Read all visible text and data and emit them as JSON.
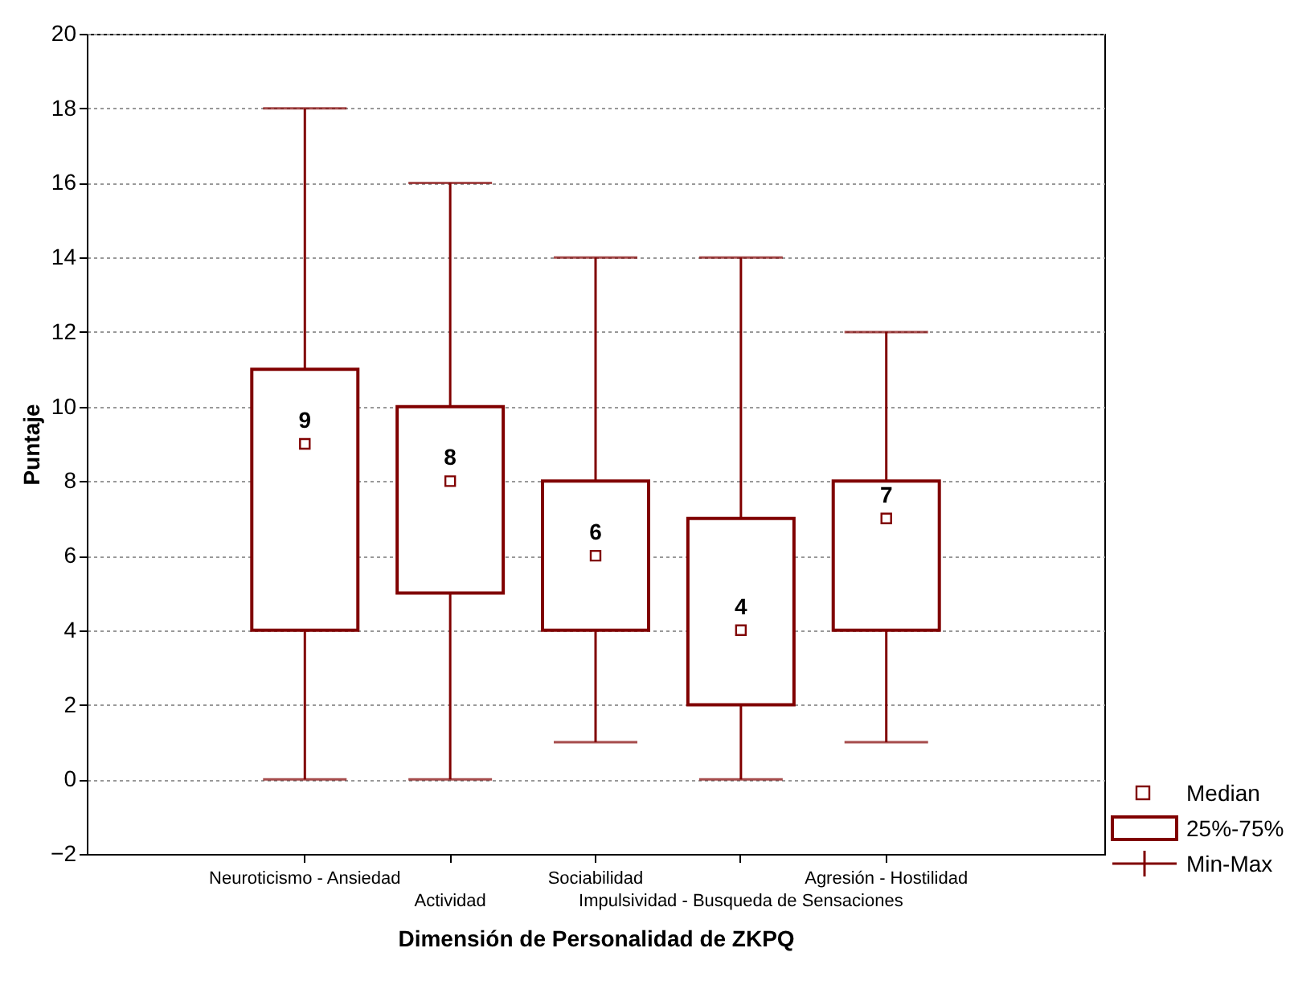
{
  "chart_data": {
    "type": "box",
    "xlabel": "Dimensión de Personalidad de ZKPQ",
    "ylabel": "Puntaje",
    "categories": [
      "Neuroticismo - Ansiedad",
      "Actividad",
      "Sociabilidad",
      "Impulsividad - Busqueda de Sensaciones",
      "Agresión - Hostilidad"
    ],
    "boxes": [
      {
        "low": 0,
        "q1": 4,
        "median": 9,
        "q3": 11,
        "high": 18
      },
      {
        "low": 0,
        "q1": 5,
        "median": 8,
        "q3": 10,
        "high": 16
      },
      {
        "low": 1,
        "q1": 4,
        "median": 6,
        "q3": 8,
        "high": 14
      },
      {
        "low": 0,
        "q1": 2,
        "median": 4,
        "q3": 7,
        "high": 14
      },
      {
        "low": 1,
        "q1": 4,
        "median": 7,
        "q3": 8,
        "high": 12
      }
    ],
    "color": "#800000",
    "ylim": [
      -2,
      20
    ],
    "yticks": [
      -2,
      0,
      2,
      4,
      6,
      8,
      10,
      12,
      14,
      16,
      18,
      20
    ],
    "grid": "y",
    "marker": "square",
    "value_labels": [
      "9",
      "8",
      "6",
      "4",
      "7"
    ],
    "annotations": [
      "Median",
      "25%-75%",
      "Min-Max"
    ]
  }
}
